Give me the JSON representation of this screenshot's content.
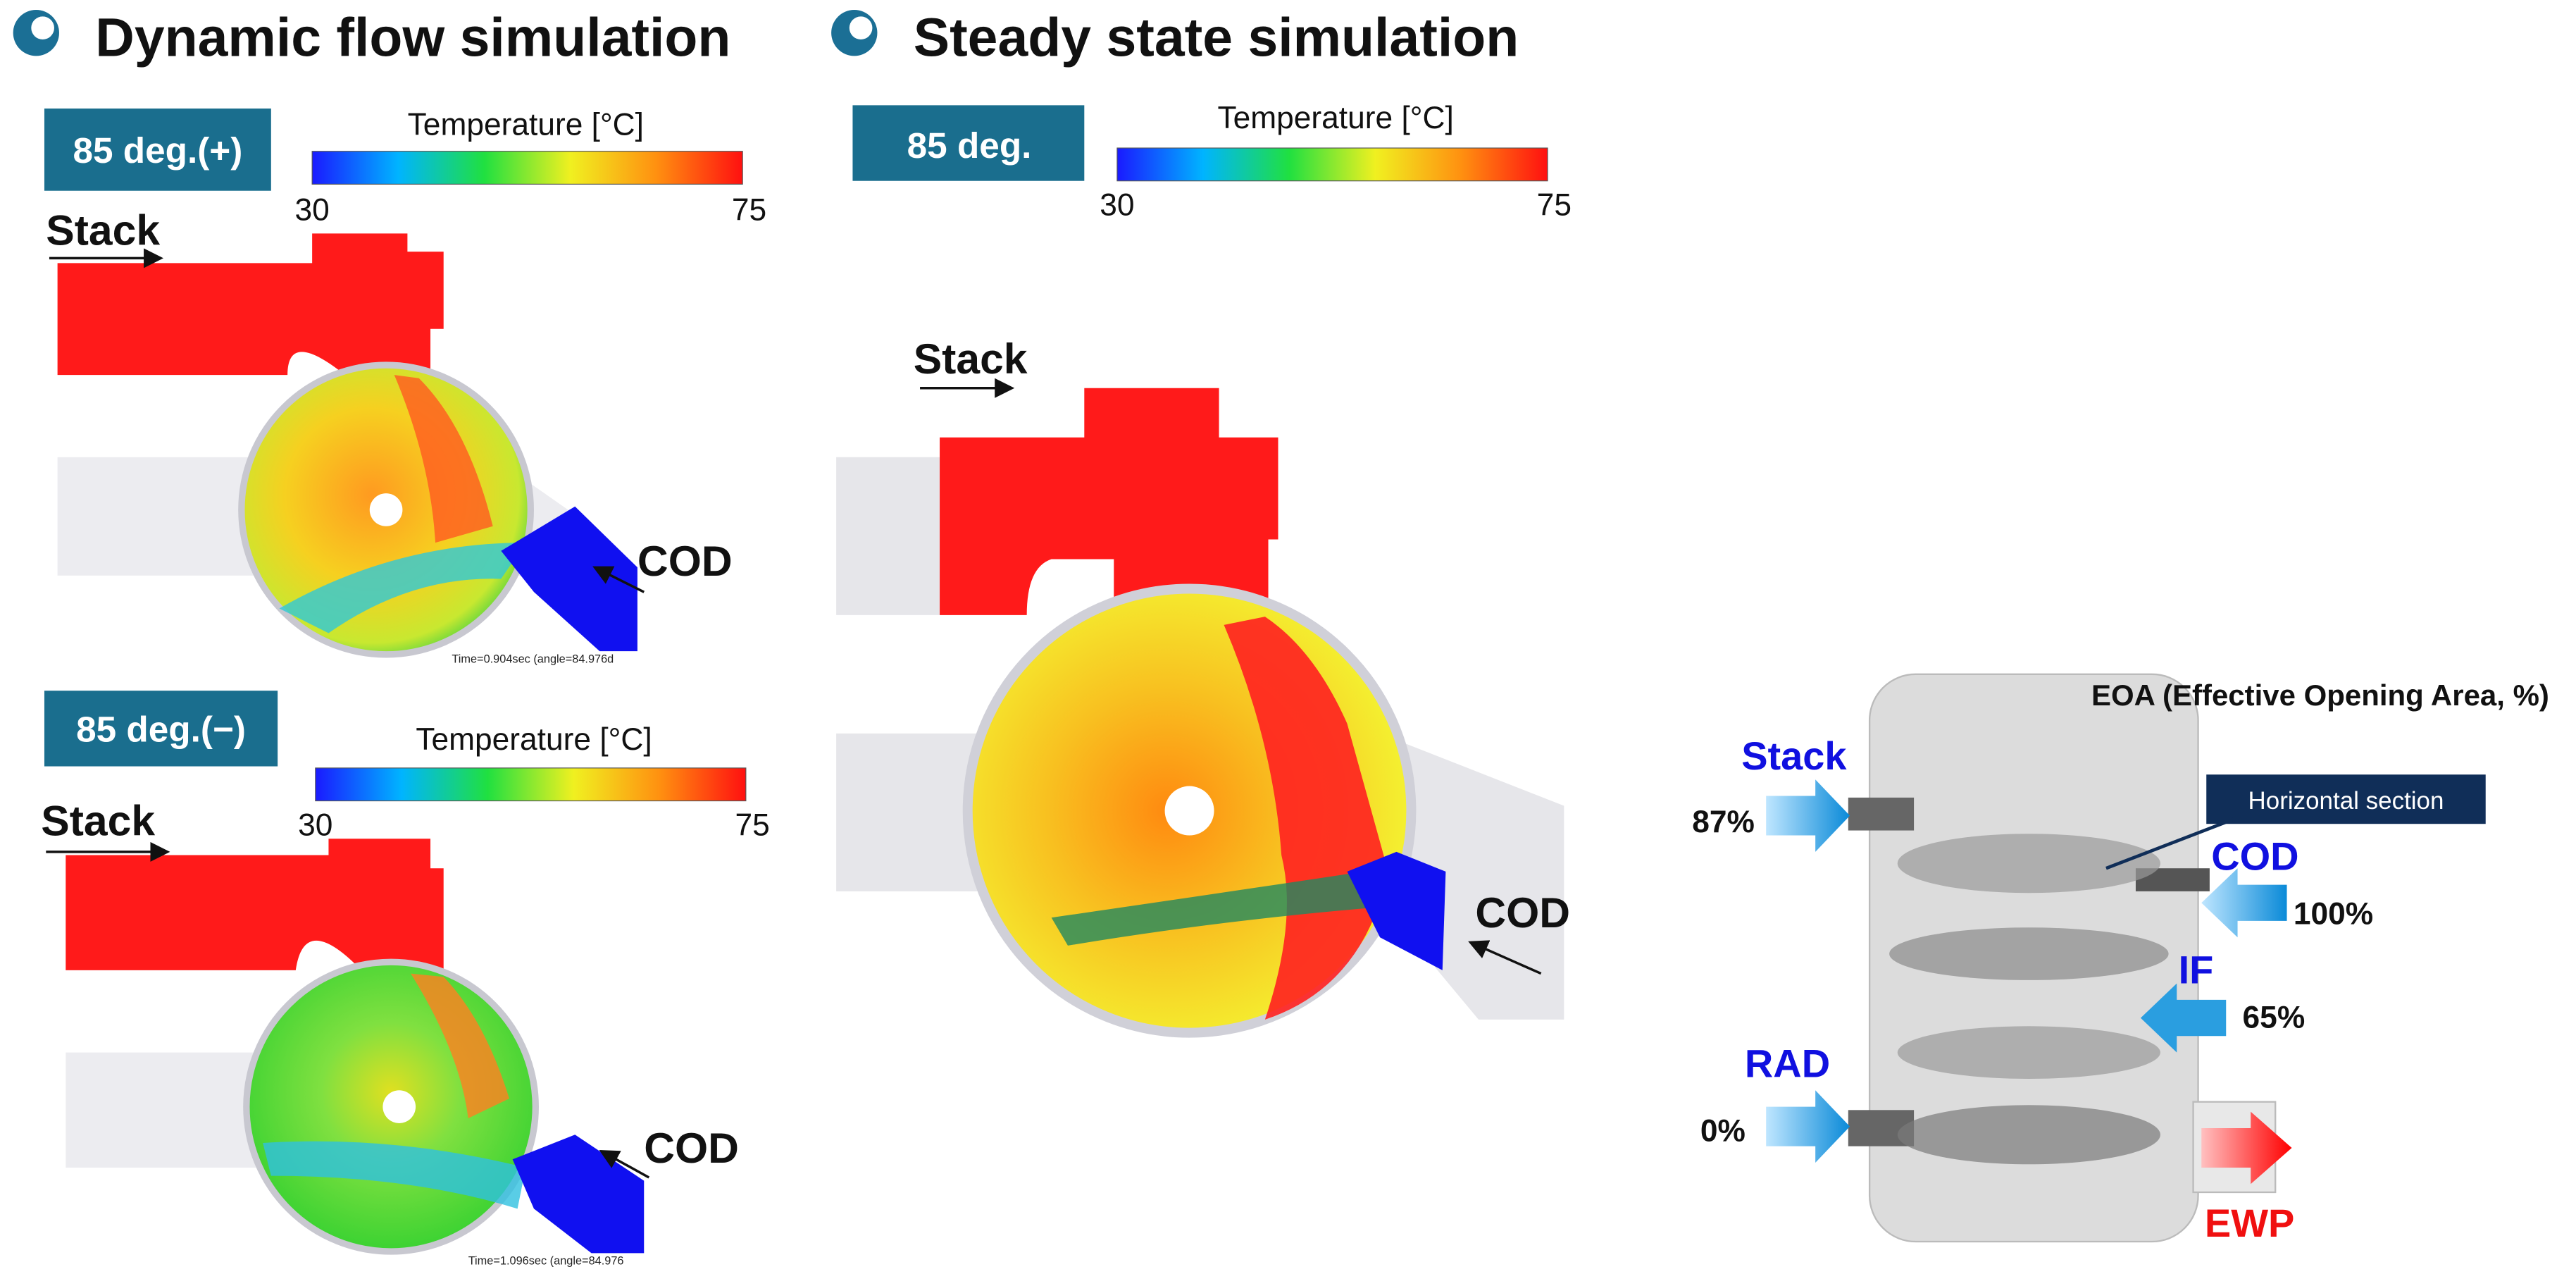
{
  "sections": [
    {
      "title": "Dynamic flow simulation",
      "panels": [
        {
          "badge": "85 deg.(+)",
          "colorbar": {
            "label": "Temperature [°C]",
            "min": "30",
            "max": "75"
          },
          "inlet": "Stack",
          "outlet": "COD",
          "time": "Time=0.904sec (angle=84.976d"
        },
        {
          "badge": "85 deg.(−)",
          "colorbar": {
            "label": "Temperature [°C]",
            "min": "30",
            "max": "75"
          },
          "inlet": "Stack",
          "outlet": "COD",
          "time": "Time=1.096sec (angle=84.976"
        }
      ]
    },
    {
      "title": "Steady state simulation",
      "panels": [
        {
          "badge": "85 deg.",
          "colorbar": {
            "label": "Temperature [°C]",
            "min": "30",
            "max": "75"
          },
          "inlet": "Stack",
          "outlet": "COD"
        }
      ]
    }
  ],
  "valve": {
    "title": "EOA (Effective Opening Area, %)",
    "callout": "Horizontal section",
    "ports": [
      {
        "name": "Stack",
        "value": "87%"
      },
      {
        "name": "COD",
        "value": "100%"
      },
      {
        "name": "IF",
        "value": "65%"
      },
      {
        "name": "RAD",
        "value": "0%"
      }
    ],
    "outlet": "EWP"
  }
}
